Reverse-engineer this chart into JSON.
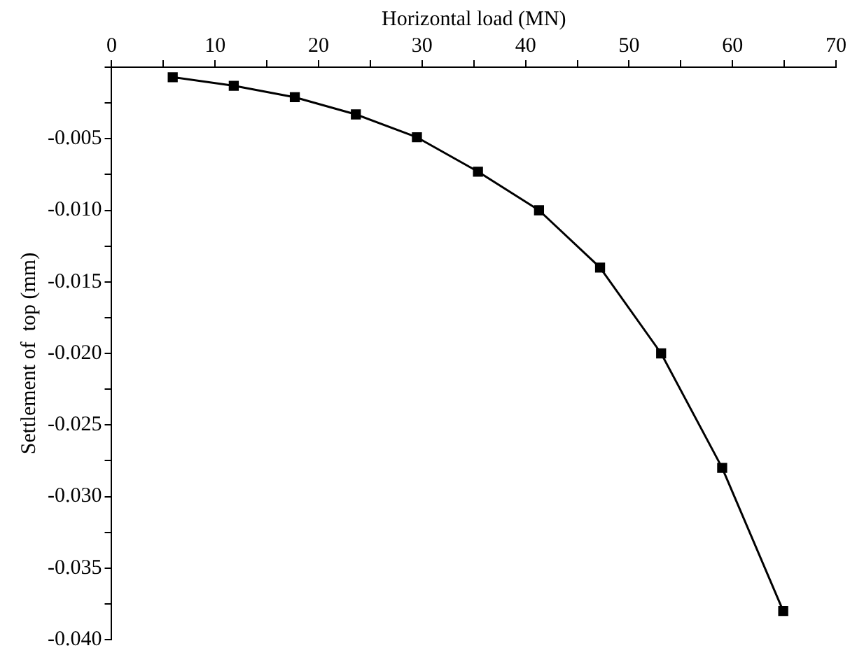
{
  "chart_data": {
    "type": "line",
    "xlabel": "Horizontal load (MN)",
    "ylabel": "Settlement of  top (mm)",
    "x": [
      5.9,
      11.8,
      17.7,
      23.6,
      29.5,
      35.4,
      41.3,
      47.2,
      53.1,
      59.0,
      64.9
    ],
    "series": [
      {
        "color": "#000000",
        "values": [
          -0.0007,
          -0.0013,
          -0.0021,
          -0.0033,
          -0.0049,
          -0.0073,
          -0.01,
          -0.014,
          -0.02,
          -0.028,
          -0.038
        ]
      }
    ],
    "xlim": [
      0,
      70
    ],
    "xticks": [
      0,
      {
        "value": 5,
        "label": null
      },
      10,
      {
        "value": 15,
        "label": null
      },
      20,
      {
        "value": 25,
        "label": null
      },
      30,
      {
        "value": 35,
        "label": null
      },
      40,
      {
        "value": 45,
        "label": null
      },
      50,
      {
        "value": 55,
        "label": null
      },
      60,
      {
        "value": 65,
        "label": null
      },
      70
    ],
    "ylim": [
      -0.04,
      0
    ],
    "yticks": [
      {
        "value": 0,
        "label": null
      },
      {
        "value": -0.0025,
        "label": null
      },
      {
        "value": -0.005,
        "label": "-0.005"
      },
      {
        "value": -0.0075,
        "label": null
      },
      {
        "value": -0.01,
        "label": "-0.010"
      },
      {
        "value": -0.0125,
        "label": null
      },
      {
        "value": -0.015,
        "label": "-0.015"
      },
      {
        "value": -0.0175,
        "label": null
      },
      {
        "value": -0.02,
        "label": "-0.020"
      },
      {
        "value": -0.0225,
        "label": null
      },
      {
        "value": -0.025,
        "label": "-0.025"
      },
      {
        "value": -0.0275,
        "label": null
      },
      {
        "value": -0.03,
        "label": "-0.030"
      },
      {
        "value": -0.0325,
        "label": null
      },
      {
        "value": -0.035,
        "label": "-0.035"
      },
      {
        "value": -0.0375,
        "label": null
      },
      {
        "value": -0.04,
        "label": "-0.040"
      }
    ],
    "grid": false,
    "legend": false,
    "marker": "square",
    "line_style": "solid"
  }
}
